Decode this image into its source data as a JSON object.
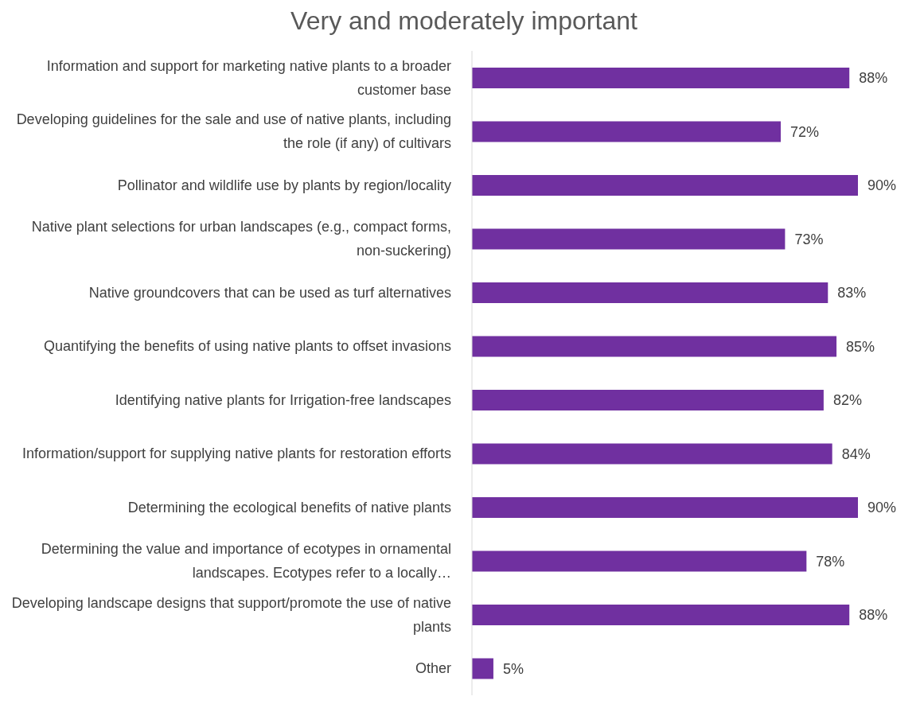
{
  "chart_data": {
    "type": "bar",
    "orientation": "horizontal",
    "title": "Very and moderately important",
    "categories": [
      "Information and support for marketing native plants to a broader customer base",
      "Developing guidelines for the sale and use of native plants, including the role (if any) of cultivars",
      "Pollinator and wildlife use by plants by region/locality",
      "Native plant selections for urban landscapes (e.g., compact forms, non-suckering)",
      "Native groundcovers that can be used as turf alternatives",
      "Quantifying the benefits of using native plants to offset invasions",
      "Identifying native plants for Irrigation-free landscapes",
      "Information/support for supplying native plants for restoration efforts",
      "Determining the ecological benefits of native plants",
      "Determining the value and importance of ecotypes in ornamental landscapes. Ecotypes refer to a locally…",
      "Developing landscape designs that support/promote the use of native plants",
      "Other"
    ],
    "values": [
      88,
      72,
      90,
      73,
      83,
      85,
      82,
      84,
      90,
      78,
      88,
      5
    ],
    "value_labels": [
      "88%",
      "72%",
      "90%",
      "73%",
      "83%",
      "85%",
      "82%",
      "84%",
      "90%",
      "78%",
      "88%",
      "5%"
    ],
    "color": "#7030a0",
    "tick_labels": "y",
    "grid": false,
    "legend": false
  }
}
